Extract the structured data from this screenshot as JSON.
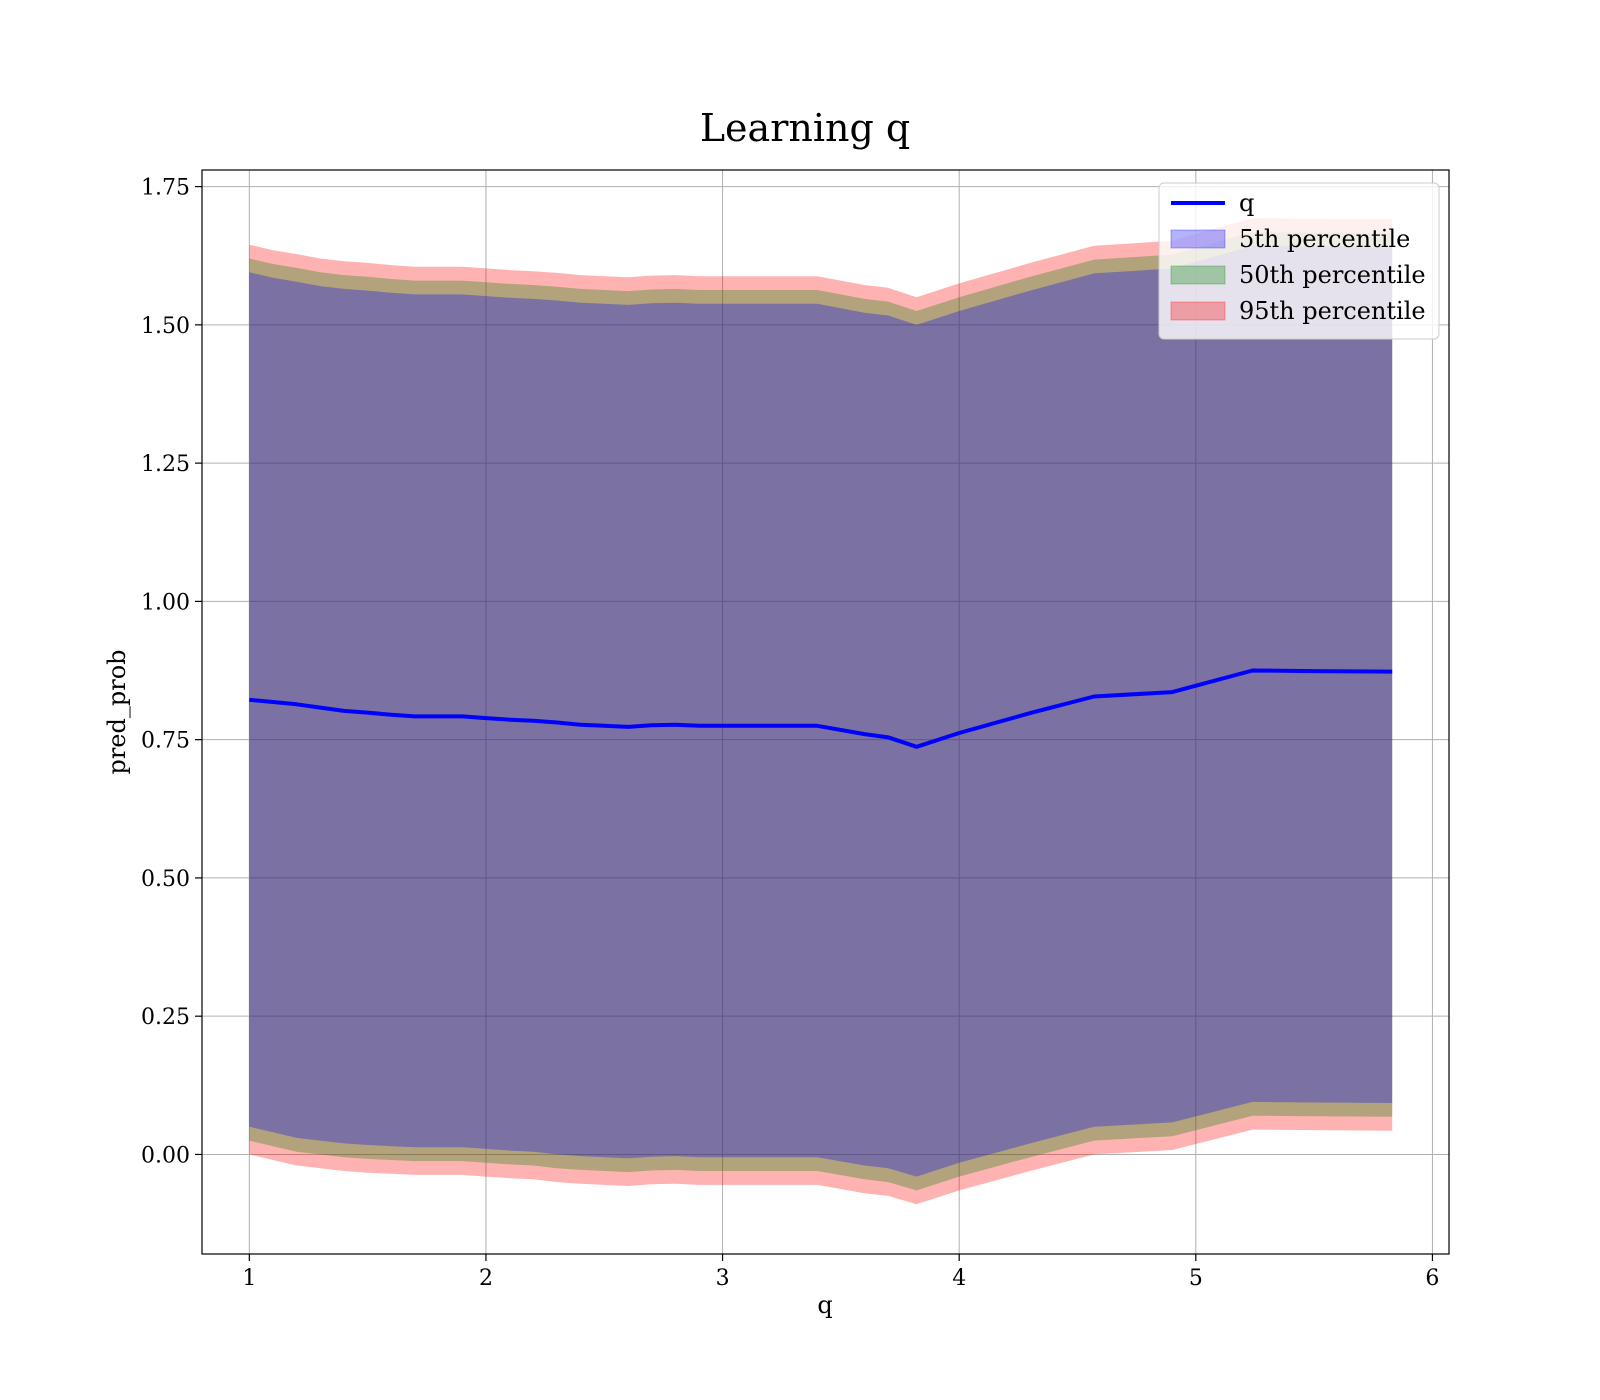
{
  "chart_data": {
    "type": "line",
    "title": "Learning q",
    "xlabel": "q",
    "ylabel": "pred_prob",
    "xlim": [
      0.8,
      6.07
    ],
    "ylim": [
      -0.18,
      1.78
    ],
    "xticks": [
      1,
      2,
      3,
      4,
      5,
      6
    ],
    "xtick_labels": [
      "1",
      "2",
      "3",
      "4",
      "5",
      "6"
    ],
    "yticks": [
      0.0,
      0.25,
      0.5,
      0.75,
      1.0,
      1.25,
      1.5,
      1.75
    ],
    "ytick_labels": [
      "0.00",
      "0.25",
      "0.50",
      "0.75",
      "1.00",
      "1.25",
      "1.50",
      "1.75"
    ],
    "grid": true,
    "legend_position": "upper-right",
    "x": [
      1.0,
      1.1,
      1.2,
      1.3,
      1.4,
      1.5,
      1.6,
      1.7,
      1.8,
      1.9,
      2.0,
      2.1,
      2.2,
      2.3,
      2.4,
      2.5,
      2.6,
      2.7,
      2.8,
      2.9,
      3.0,
      3.2,
      3.4,
      3.6,
      3.7,
      3.82,
      4.0,
      4.3,
      4.57,
      4.9,
      5.24,
      5.5,
      5.83
    ],
    "line": {
      "name": "q",
      "color": "#0000ff",
      "values": [
        0.822,
        0.818,
        0.814,
        0.808,
        0.802,
        0.799,
        0.795,
        0.792,
        0.792,
        0.792,
        0.789,
        0.786,
        0.784,
        0.781,
        0.777,
        0.775,
        0.773,
        0.776,
        0.777,
        0.775,
        0.775,
        0.775,
        0.775,
        0.76,
        0.754,
        0.737,
        0.762,
        0.798,
        0.828,
        0.836,
        0.875,
        0.874,
        0.873
      ]
    },
    "bands": [
      {
        "name": "95th percentile",
        "color": "#ff0000",
        "opacity": 0.3,
        "lower": [
          0.0,
          -0.01,
          -0.02,
          -0.025,
          -0.03,
          -0.033,
          -0.035,
          -0.037,
          -0.037,
          -0.037,
          -0.04,
          -0.043,
          -0.045,
          -0.05,
          -0.053,
          -0.055,
          -0.057,
          -0.054,
          -0.053,
          -0.055,
          -0.055,
          -0.055,
          -0.055,
          -0.07,
          -0.075,
          -0.09,
          -0.065,
          -0.03,
          0.0,
          0.008,
          0.045,
          0.044,
          0.043
        ],
        "upper": [
          1.645,
          1.635,
          1.628,
          1.62,
          1.615,
          1.612,
          1.608,
          1.605,
          1.605,
          1.605,
          1.602,
          1.599,
          1.597,
          1.594,
          1.59,
          1.588,
          1.586,
          1.589,
          1.59,
          1.588,
          1.588,
          1.588,
          1.588,
          1.572,
          1.567,
          1.55,
          1.575,
          1.612,
          1.643,
          1.652,
          1.693,
          1.692,
          1.691
        ]
      },
      {
        "name": "50th percentile",
        "color": "#008000",
        "opacity": 0.3,
        "lower": [
          0.025,
          0.015,
          0.005,
          0.0,
          -0.005,
          -0.008,
          -0.01,
          -0.012,
          -0.012,
          -0.012,
          -0.015,
          -0.018,
          -0.02,
          -0.025,
          -0.028,
          -0.03,
          -0.032,
          -0.029,
          -0.028,
          -0.03,
          -0.03,
          -0.03,
          -0.03,
          -0.045,
          -0.05,
          -0.065,
          -0.04,
          -0.005,
          0.025,
          0.033,
          0.07,
          0.069,
          0.068
        ],
        "upper": [
          1.62,
          1.61,
          1.603,
          1.595,
          1.59,
          1.587,
          1.583,
          1.58,
          1.58,
          1.58,
          1.577,
          1.574,
          1.572,
          1.569,
          1.565,
          1.563,
          1.561,
          1.564,
          1.565,
          1.563,
          1.563,
          1.563,
          1.563,
          1.547,
          1.542,
          1.525,
          1.55,
          1.587,
          1.618,
          1.627,
          1.668,
          1.667,
          1.666
        ]
      },
      {
        "name": "5th percentile",
        "color": "#0000ff",
        "opacity": 0.3,
        "lower": [
          0.05,
          0.04,
          0.03,
          0.025,
          0.02,
          0.017,
          0.015,
          0.013,
          0.013,
          0.013,
          0.01,
          0.007,
          0.005,
          0.0,
          -0.003,
          -0.005,
          -0.007,
          -0.004,
          -0.003,
          -0.005,
          -0.005,
          -0.005,
          -0.005,
          -0.02,
          -0.025,
          -0.04,
          -0.015,
          0.02,
          0.05,
          0.058,
          0.095,
          0.094,
          0.093
        ],
        "upper": [
          1.595,
          1.585,
          1.578,
          1.57,
          1.565,
          1.562,
          1.558,
          1.555,
          1.555,
          1.555,
          1.552,
          1.549,
          1.547,
          1.544,
          1.54,
          1.538,
          1.536,
          1.539,
          1.54,
          1.538,
          1.538,
          1.538,
          1.538,
          1.522,
          1.517,
          1.5,
          1.525,
          1.562,
          1.593,
          1.602,
          1.643,
          1.642,
          1.641
        ]
      }
    ],
    "legend": [
      {
        "label": "q",
        "kind": "line",
        "color": "#0000ff"
      },
      {
        "label": "5th percentile",
        "kind": "patch",
        "color": "#0000ff"
      },
      {
        "label": "50th percentile",
        "kind": "patch",
        "color": "#008000"
      },
      {
        "label": "95th percentile",
        "kind": "patch",
        "color": "#ff0000"
      }
    ]
  }
}
